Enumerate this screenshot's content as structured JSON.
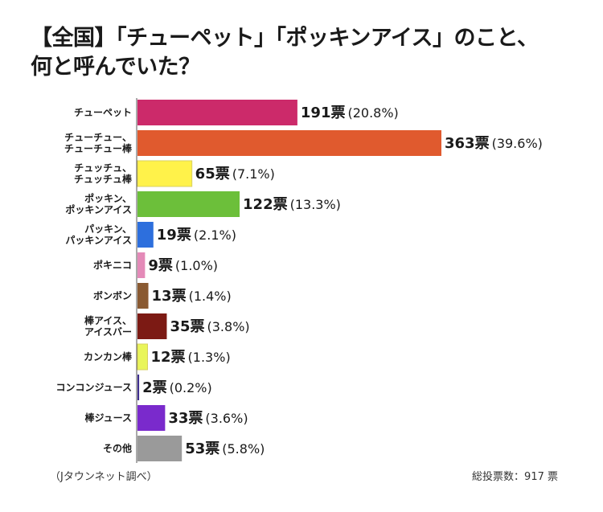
{
  "title": {
    "line1": "【全国】「チューペット」「ポッキンアイス」のこと、",
    "line2": "何と呼んでいた？"
  },
  "footer": {
    "source": "（Jタウンネット調べ）",
    "total": "総投票数：917 票"
  },
  "chart_data": {
    "type": "bar",
    "orientation": "horizontal",
    "title": "【全国】「チューペット」「ポッキンアイス」のこと、何と呼んでいた？",
    "xlim": [
      0,
      363
    ],
    "grid": false,
    "categories": [
      [
        "チューペット"
      ],
      [
        "チューチュー、",
        "チューチュー棒"
      ],
      [
        "チュッチュ、",
        "チュッチュ棒"
      ],
      [
        "ポッキン、",
        "ポッキンアイス"
      ],
      [
        "パッキン、",
        "パッキンアイス"
      ],
      [
        "ポキニコ"
      ],
      [
        "ボンボン"
      ],
      [
        "棒アイス、",
        "アイスバー"
      ],
      [
        "カンカン棒"
      ],
      [
        "コンコンジュース"
      ],
      [
        "棒ジュース"
      ],
      [
        "その他"
      ]
    ],
    "values": [
      191,
      363,
      65,
      122,
      19,
      9,
      13,
      35,
      12,
      2,
      33,
      53
    ],
    "value_labels": [
      "191票",
      "363票",
      "65票",
      "122票",
      "19票",
      "9票",
      "13票",
      "35票",
      "12票",
      "2票",
      "33票",
      "53票"
    ],
    "percent_labels": [
      "(20.8%)",
      "(39.6%)",
      "(7.1%)",
      "(13.3%)",
      "(2.1%)",
      "(1.0%)",
      "(1.4%)",
      "(3.8%)",
      "(1.3%)",
      "(0.2%)",
      "(3.6%)",
      "(5.8%)"
    ],
    "colors": [
      "#cc2a6a",
      "#e05a2e",
      "#fff24a",
      "#6cbf3a",
      "#2d6fdd",
      "#e48ab8",
      "#8a5a32",
      "#7c1a14",
      "#e9f55a",
      "#3d2d8e",
      "#7a2acc",
      "#9a9a9a"
    ]
  }
}
